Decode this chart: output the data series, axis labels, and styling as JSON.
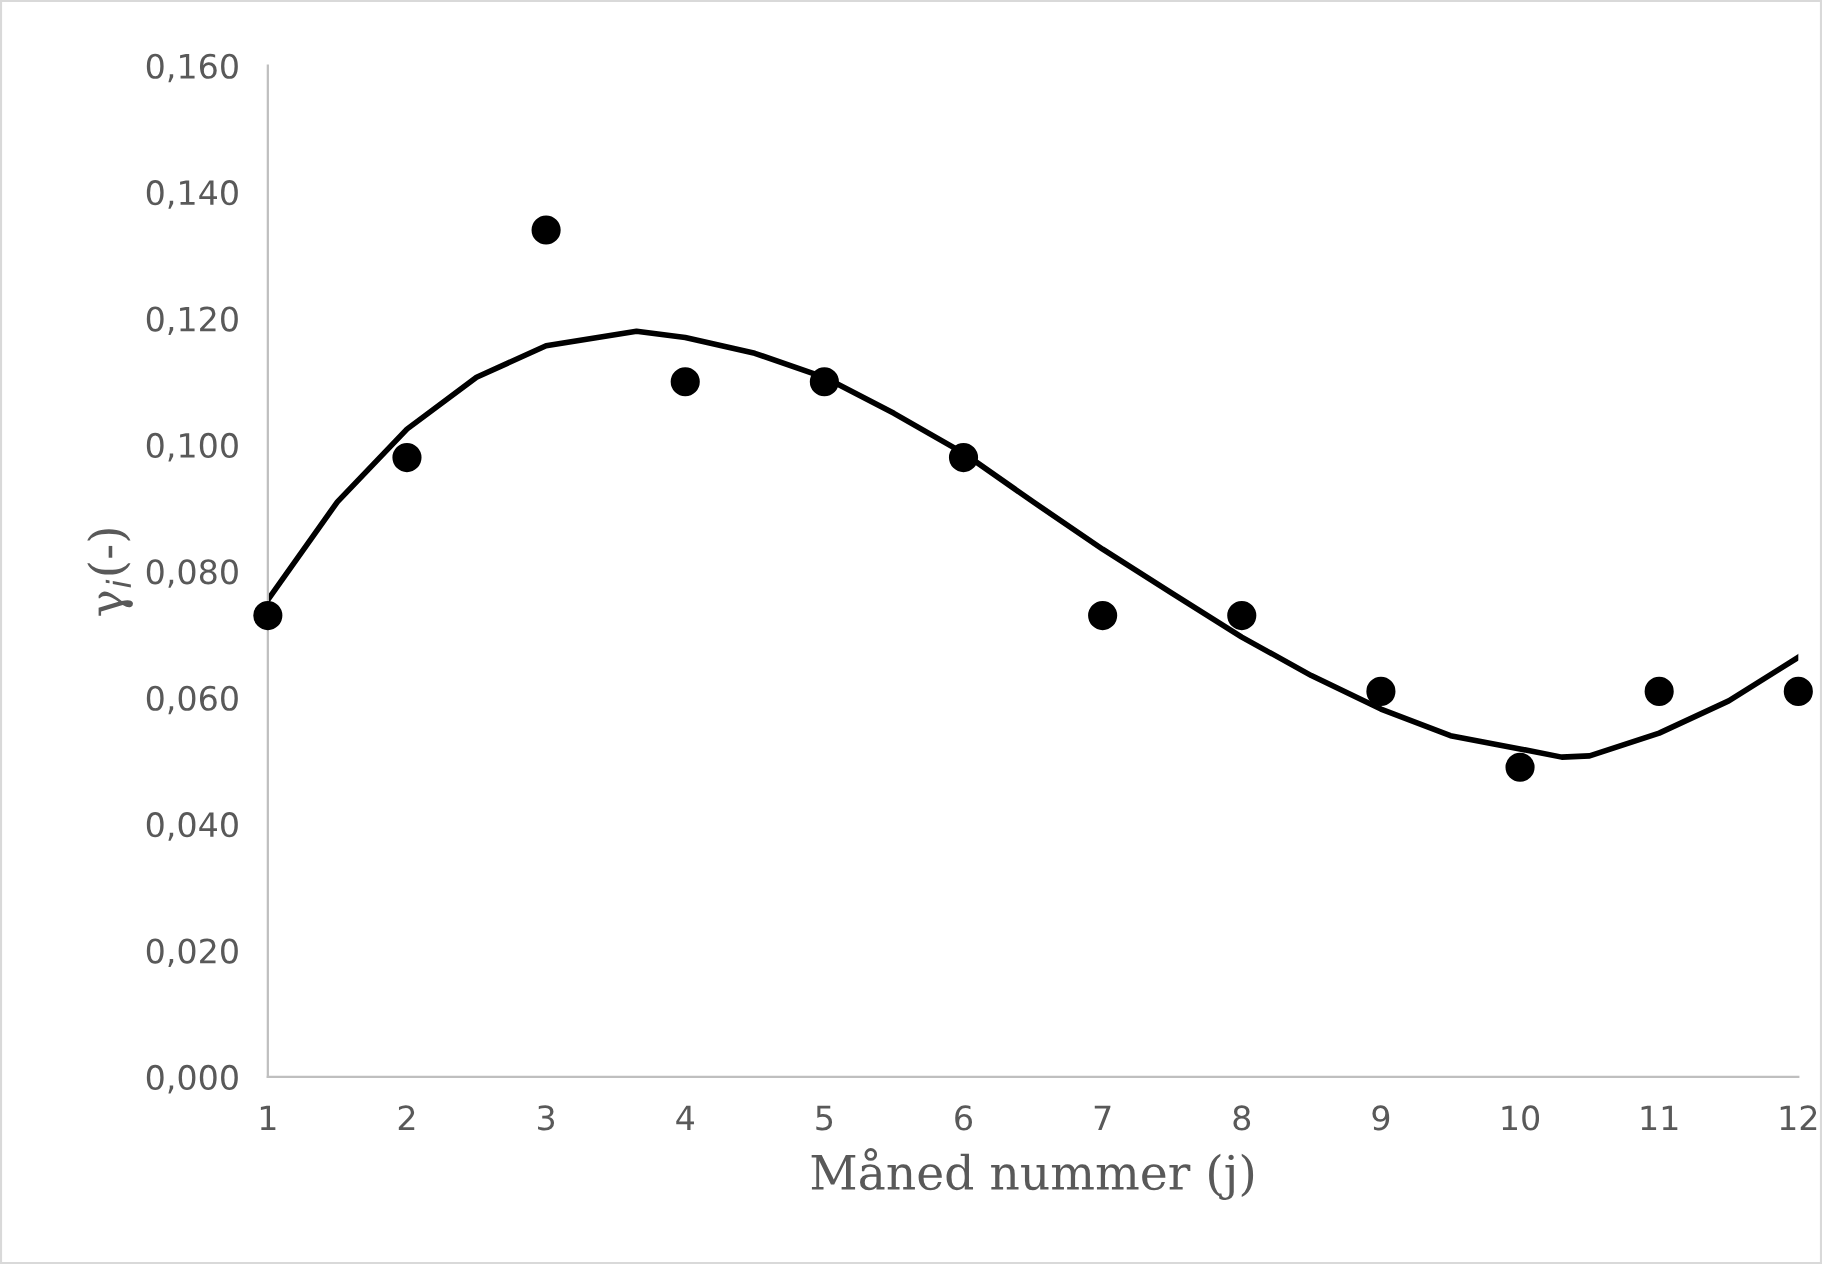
{
  "chart_data": {
    "type": "scatter",
    "xlabel": "Måned nummer (j)",
    "ylabel": "γ$_{i}$(-)",
    "x": [
      1,
      2,
      3,
      4,
      5,
      6,
      7,
      8,
      9,
      10,
      11,
      12
    ],
    "series": [
      {
        "color": "#000000",
        "marker": "circle",
        "values": [
          0.073,
          0.098,
          0.134,
          0.11,
          0.11,
          0.098,
          0.073,
          0.073,
          0.061,
          0.049,
          0.061,
          0.061
        ]
      },
      {
        "type": "line",
        "color": "#000000",
        "marker": "none",
        "line_style": "solid",
        "x": [
          1,
          1.5,
          2,
          2.5,
          3,
          3.65,
          4,
          4.5,
          5,
          5.5,
          6,
          6.5,
          7,
          7.5,
          8,
          8.5,
          9,
          9.5,
          10,
          10.3,
          10.5,
          11,
          11.5,
          12
        ],
        "values": [
          0.0755,
          0.091,
          0.1025,
          0.1107,
          0.1157,
          0.118,
          0.117,
          0.1145,
          0.1107,
          0.105,
          0.0987,
          0.091,
          0.0835,
          0.0765,
          0.0696,
          0.0635,
          0.0582,
          0.054,
          0.0519,
          0.0506,
          0.0508,
          0.0544,
          0.0595,
          0.0664
        ]
      }
    ],
    "xlim": [
      1,
      12
    ],
    "xticks": [
      1,
      2,
      3,
      4,
      5,
      6,
      7,
      8,
      9,
      10,
      11,
      12
    ],
    "ylim": [
      0,
      0.16
    ],
    "yticks": [
      {
        "value": 0,
        "label": "0,000"
      },
      {
        "value": 0.02,
        "label": "0,020"
      },
      {
        "value": 0.04,
        "label": "0,040"
      },
      {
        "value": 0.06,
        "label": "0,060"
      },
      {
        "value": 0.08,
        "label": "0,080"
      },
      {
        "value": 0.1,
        "label": "0,100"
      },
      {
        "value": 0.12,
        "label": "0,120"
      },
      {
        "value": 0.14,
        "label": "0,140"
      },
      {
        "value": 0.16,
        "label": "0,160"
      }
    ],
    "grid": false,
    "legend": false
  }
}
